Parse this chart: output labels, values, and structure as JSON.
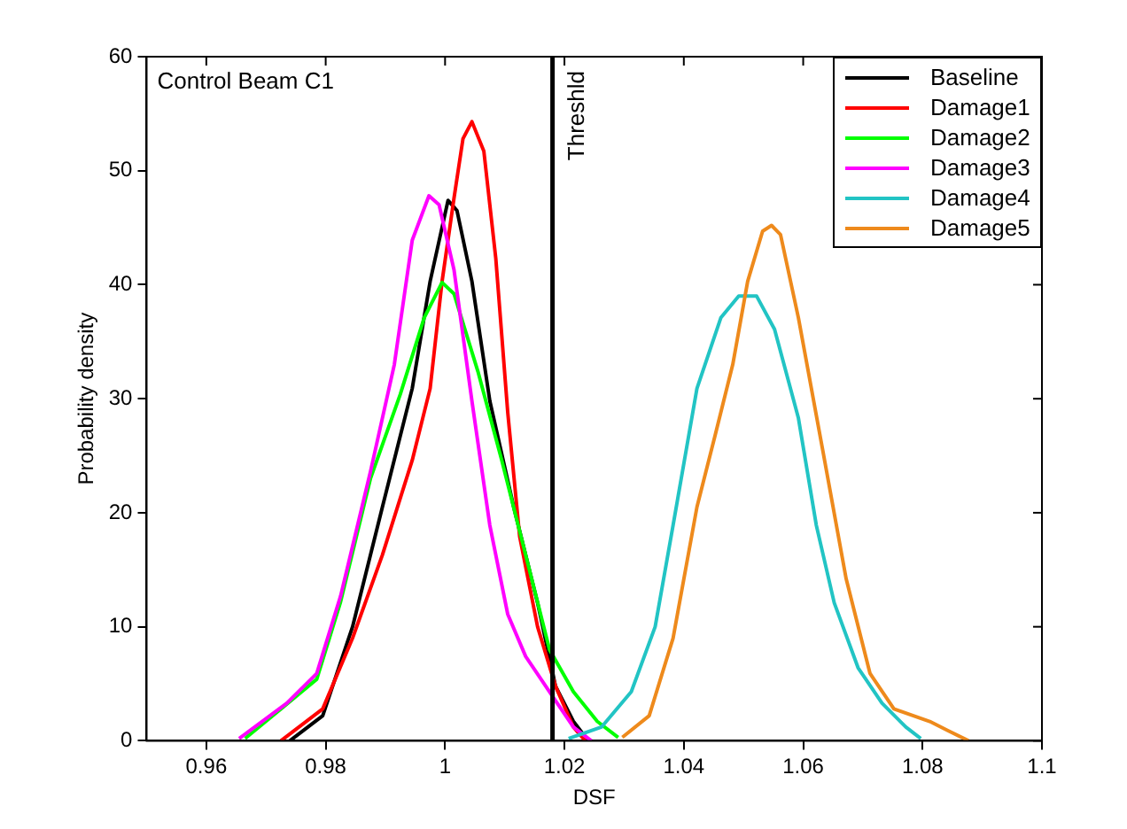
{
  "chart_data": {
    "type": "line",
    "xlabel": "DSF",
    "ylabel": "Probability density",
    "annotations": [
      "Control Beam C1"
    ],
    "xlim": [
      0.95,
      1.1
    ],
    "xticks": [
      0.96,
      0.98,
      1,
      1.02,
      1.04,
      1.06,
      1.08,
      1.1
    ],
    "ylim": [
      0,
      60
    ],
    "yticks": [
      0,
      10,
      20,
      30,
      40,
      50,
      60
    ],
    "legend": "top right",
    "marker": "none",
    "line_style": "solid",
    "ref_lines": [
      {
        "axis": "x",
        "value": 1.018,
        "label": "Threshld",
        "color": "#000000"
      }
    ],
    "series": [
      {
        "name": "Baseline",
        "color": "#000000",
        "x": [
          0.974,
          0.9795,
          0.9845,
          0.9895,
          0.9945,
          0.9975,
          1.0005,
          1.002,
          1.0045,
          1.0075,
          1.0115,
          1.0155,
          1.0185,
          1.0215,
          1.024
        ],
        "values": [
          0,
          2.2,
          10,
          20.5,
          30.9,
          40.3,
          47.4,
          46.5,
          40.3,
          29.8,
          20.5,
          12.1,
          4.8,
          1.7,
          0
        ]
      },
      {
        "name": "Damage1",
        "color": "#ff0000",
        "x": [
          0.9725,
          0.9795,
          0.9845,
          0.9895,
          0.9945,
          0.9975,
          0.9995,
          1.0015,
          1.003,
          1.0045,
          1.0065,
          1.0085,
          1.0105,
          1.0125,
          1.0155,
          1.0185,
          1.0215,
          1.0235
        ],
        "values": [
          0,
          2.8,
          9,
          16.3,
          24.6,
          30.9,
          40.3,
          47.6,
          52.8,
          54.3,
          51.7,
          42.3,
          28.8,
          17.9,
          10,
          4.8,
          1.2,
          0
        ]
      },
      {
        "name": "Damage2",
        "color": "#00ff00",
        "x": [
          0.9665,
          0.9725,
          0.9785,
          0.9825,
          0.9875,
          0.9925,
          0.9965,
          0.9995,
          1.0015,
          1.0055,
          1.0095,
          1.0135,
          1.0175,
          1.0215,
          1.0255,
          1.029
        ],
        "values": [
          0.2,
          2.8,
          5.4,
          12.2,
          23,
          30.4,
          37.1,
          40.2,
          39.2,
          32.4,
          24.6,
          16.3,
          8,
          4.3,
          1.7,
          0.3
        ]
      },
      {
        "name": "Damage3",
        "color": "#ff00ff",
        "x": [
          0.9655,
          0.9735,
          0.9785,
          0.9825,
          0.9875,
          0.9915,
          0.9945,
          0.9973,
          0.999,
          1.0015,
          1.0045,
          1.0075,
          1.0105,
          1.0135,
          1.0175,
          1.0215,
          1.0245
        ],
        "values": [
          0.2,
          3.3,
          5.9,
          12.7,
          23.6,
          33,
          43.9,
          47.8,
          47,
          41.3,
          29.8,
          18.9,
          11.1,
          7.4,
          4.3,
          1.2,
          0
        ]
      },
      {
        "name": "Damage4",
        "color": "#22c4c4",
        "x": [
          1.0207,
          1.0262,
          1.0312,
          1.0352,
          1.0382,
          1.0422,
          1.0462,
          1.0492,
          1.0522,
          1.0552,
          1.0592,
          1.0622,
          1.0652,
          1.0692,
          1.0732,
          1.0772,
          1.0797
        ],
        "values": [
          0.2,
          1.2,
          4.3,
          10,
          18.9,
          30.9,
          37.1,
          39,
          39,
          36.1,
          28.3,
          18.9,
          12.1,
          6.4,
          3.3,
          1.2,
          0.2
        ]
      },
      {
        "name": "Damage5",
        "color": "#ee8a1c",
        "x": [
          1.0297,
          1.0342,
          1.0382,
          1.0422,
          1.0452,
          1.0482,
          1.0507,
          1.0532,
          1.0547,
          1.0562,
          1.0592,
          1.0632,
          1.0672,
          1.0712,
          1.0752,
          1.0812,
          1.0842,
          1.0877
        ],
        "values": [
          0.3,
          2.2,
          9,
          20.5,
          26.7,
          33,
          40.3,
          44.7,
          45.2,
          44.4,
          37.1,
          25.7,
          14.2,
          5.9,
          2.8,
          1.7,
          0.9,
          0
        ]
      }
    ]
  }
}
